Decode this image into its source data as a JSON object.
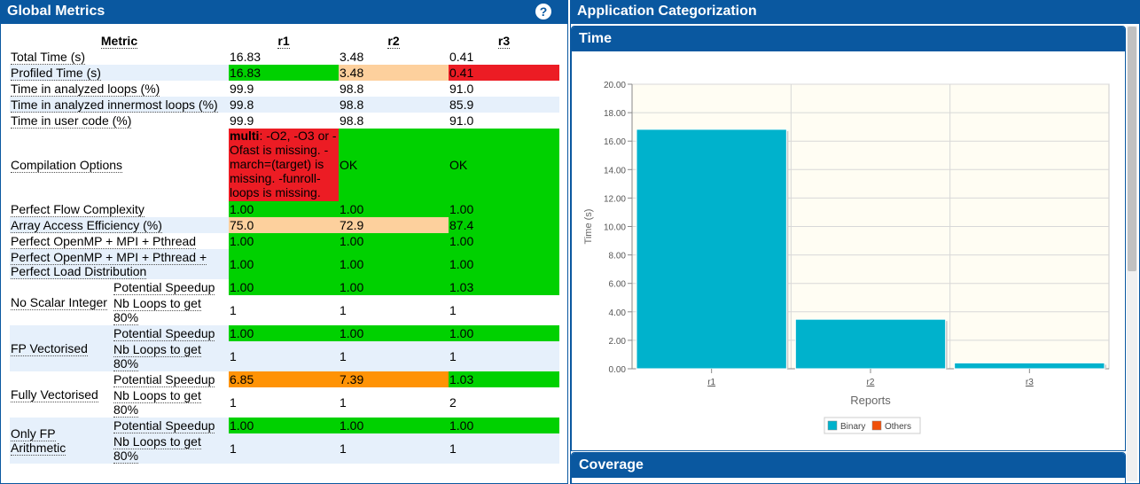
{
  "left_panel": {
    "title": "Global Metrics",
    "help_icon": "question-circle-icon"
  },
  "table": {
    "headers": [
      "Metric",
      "r1",
      "r2",
      "r3"
    ],
    "rows": [
      {
        "label": "Total Time (s)",
        "values": [
          "16.83",
          "3.48",
          "0.41"
        ],
        "colors": [
          "",
          "",
          ""
        ]
      },
      {
        "label": "Profiled Time (s)",
        "values": [
          "16.83",
          "3.48",
          "0.41"
        ],
        "colors": [
          "g",
          "p",
          "r"
        ]
      },
      {
        "label": "Time in analyzed loops (%)",
        "values": [
          "99.9",
          "98.8",
          "91.0"
        ],
        "colors": [
          "",
          "",
          ""
        ]
      },
      {
        "label": "Time in analyzed innermost loops (%)",
        "values": [
          "99.8",
          "98.8",
          "85.9"
        ],
        "colors": [
          "",
          "",
          ""
        ]
      },
      {
        "label": "Time in user code (%)",
        "values": [
          "99.9",
          "98.8",
          "91.0"
        ],
        "colors": [
          "",
          "",
          ""
        ]
      }
    ],
    "compilation": {
      "label": "Compilation Options",
      "r1_bold": "multi",
      "r1_text": ": -O2, -O3 or -Ofast is missing. -march=(target) is missing. -funroll-loops is missing.",
      "r2": "OK",
      "r3": "OK"
    },
    "rows2": [
      {
        "label": "Perfect Flow Complexity",
        "values": [
          "1.00",
          "1.00",
          "1.00"
        ],
        "colors": [
          "g",
          "g",
          "g"
        ]
      },
      {
        "label": "Array Access Efficiency (%)",
        "values": [
          "75.0",
          "72.9",
          "87.4"
        ],
        "colors": [
          "p",
          "p",
          "g"
        ]
      },
      {
        "label": "Perfect OpenMP + MPI + Pthread",
        "values": [
          "1.00",
          "1.00",
          "1.00"
        ],
        "colors": [
          "g",
          "g",
          "g"
        ]
      },
      {
        "label": "Perfect OpenMP + MPI + Pthread + Perfect Load Distribution",
        "values": [
          "1.00",
          "1.00",
          "1.00"
        ],
        "colors": [
          "g",
          "g",
          "g"
        ]
      }
    ],
    "groups": [
      {
        "label": "No Scalar Integer",
        "speedup_label": "Potential Speedup",
        "speedup": [
          "1.00",
          "1.00",
          "1.03"
        ],
        "speedup_colors": [
          "g",
          "g",
          "g"
        ],
        "loops_label": "Nb Loops to get 80%",
        "loops": [
          "1",
          "1",
          "1"
        ]
      },
      {
        "label": "FP Vectorised",
        "speedup_label": "Potential Speedup",
        "speedup": [
          "1.00",
          "1.00",
          "1.00"
        ],
        "speedup_colors": [
          "g",
          "g",
          "g"
        ],
        "loops_label": "Nb Loops to get 80%",
        "loops": [
          "1",
          "1",
          "1"
        ]
      },
      {
        "label": "Fully Vectorised",
        "speedup_label": "Potential Speedup",
        "speedup": [
          "6.85",
          "7.39",
          "1.03"
        ],
        "speedup_colors": [
          "o",
          "o",
          "g"
        ],
        "loops_label": "Nb Loops to get 80%",
        "loops": [
          "1",
          "1",
          "2"
        ]
      },
      {
        "label": "Only FP Arithmetic",
        "speedup_label": "Potential Speedup",
        "speedup": [
          "1.00",
          "1.00",
          "1.00"
        ],
        "speedup_colors": [
          "g",
          "g",
          "g"
        ],
        "loops_label": "Nb Loops to get 80%",
        "loops": [
          "1",
          "1",
          "1"
        ]
      }
    ]
  },
  "right_panel": {
    "title": "Application Categorization",
    "time_section": "Time",
    "coverage_section": "Coverage"
  },
  "colors": {
    "header_blue": "#0a58a0",
    "green": "#00d100",
    "red": "#ec1c24",
    "peach": "#fdd09d",
    "orange": "#ff9305",
    "bar_binary": "#00b2cc",
    "bar_others": "#f0500a"
  },
  "chart_data": {
    "type": "bar",
    "categories": [
      "r1",
      "r2",
      "r3"
    ],
    "series": [
      {
        "name": "Binary",
        "values": [
          16.83,
          3.48,
          0.41
        ]
      },
      {
        "name": "Others",
        "values": [
          0,
          0,
          0
        ]
      }
    ],
    "ylabel": "Time (s)",
    "xlabel": "Reports",
    "ylim": [
      0,
      20
    ],
    "yticks": [
      "0.00",
      "2.00",
      "4.00",
      "6.00",
      "8.00",
      "10.00",
      "12.00",
      "14.00",
      "16.00",
      "18.00",
      "20.00"
    ],
    "grid": true,
    "legend_position": "bottom-center"
  }
}
